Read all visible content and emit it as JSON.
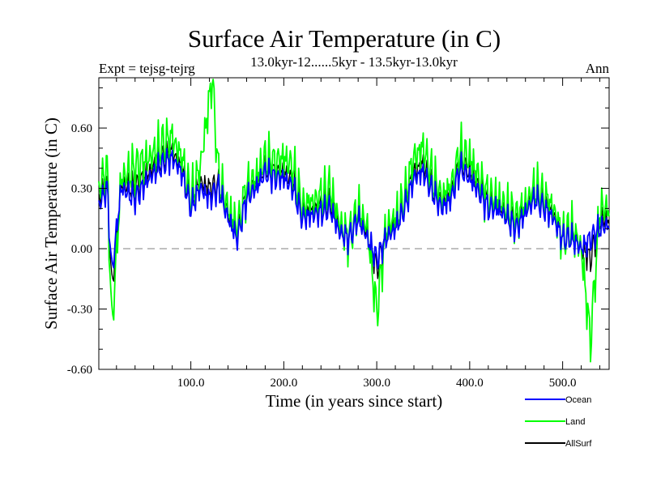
{
  "chart_data": {
    "type": "line",
    "title": "Surface Air Temperature (in C)",
    "subtitle": "13.0kyr-12......5kyr - 13.5kyr-13.0kyr",
    "left_label": "Expt = tejsg-tejrg",
    "right_label": "Ann",
    "xlabel": "Time (in years since start)",
    "ylabel": "Surface Air Temperature (in C)",
    "xlim": [
      1,
      550
    ],
    "ylim": [
      -0.6,
      0.85
    ],
    "x_ticks": [
      100,
      200,
      300,
      400,
      500
    ],
    "x_tick_labels": [
      "100.0",
      "200.0",
      "300.0",
      "400.0",
      "500.0"
    ],
    "y_ticks": [
      -0.6,
      -0.3,
      0.0,
      0.3,
      0.6
    ],
    "y_tick_labels": [
      "-0.60",
      "-0.30",
      "0.00",
      "0.30",
      "0.60"
    ],
    "zero_line": "dashed",
    "legend_position": "bottom-right",
    "series": [
      {
        "name": "Ocean",
        "color": "#0000ff",
        "anchors": [
          [
            1,
            0.22
          ],
          [
            10,
            0.3
          ],
          [
            15,
            -0.12
          ],
          [
            25,
            0.3
          ],
          [
            40,
            0.25
          ],
          [
            55,
            0.35
          ],
          [
            70,
            0.42
          ],
          [
            80,
            0.45
          ],
          [
            90,
            0.38
          ],
          [
            100,
            0.2
          ],
          [
            110,
            0.3
          ],
          [
            120,
            0.25
          ],
          [
            130,
            0.3
          ],
          [
            140,
            0.15
          ],
          [
            150,
            0.05
          ],
          [
            160,
            0.25
          ],
          [
            170,
            0.3
          ],
          [
            180,
            0.38
          ],
          [
            190,
            0.35
          ],
          [
            200,
            0.35
          ],
          [
            210,
            0.3
          ],
          [
            220,
            0.15
          ],
          [
            240,
            0.18
          ],
          [
            250,
            0.2
          ],
          [
            260,
            0.08
          ],
          [
            270,
            0.05
          ],
          [
            280,
            0.15
          ],
          [
            290,
            0.05
          ],
          [
            300,
            -0.05
          ],
          [
            310,
            0.05
          ],
          [
            320,
            0.1
          ],
          [
            330,
            0.2
          ],
          [
            340,
            0.35
          ],
          [
            350,
            0.38
          ],
          [
            360,
            0.28
          ],
          [
            370,
            0.2
          ],
          [
            380,
            0.25
          ],
          [
            390,
            0.4
          ],
          [
            400,
            0.35
          ],
          [
            410,
            0.28
          ],
          [
            420,
            0.2
          ],
          [
            430,
            0.2
          ],
          [
            440,
            0.15
          ],
          [
            450,
            0.1
          ],
          [
            460,
            0.18
          ],
          [
            470,
            0.25
          ],
          [
            480,
            0.2
          ],
          [
            490,
            0.15
          ],
          [
            500,
            0.05
          ],
          [
            510,
            0.05
          ],
          [
            520,
            0.0
          ],
          [
            530,
            0.05
          ],
          [
            540,
            0.1
          ],
          [
            550,
            0.12
          ]
        ]
      },
      {
        "name": "Land",
        "color": "#00ff00",
        "anchors": [
          [
            1,
            0.3
          ],
          [
            10,
            0.4
          ],
          [
            15,
            -0.4
          ],
          [
            25,
            0.35
          ],
          [
            40,
            0.4
          ],
          [
            55,
            0.45
          ],
          [
            70,
            0.52
          ],
          [
            80,
            0.55
          ],
          [
            90,
            0.45
          ],
          [
            100,
            0.25
          ],
          [
            110,
            0.4
          ],
          [
            123,
            0.85
          ],
          [
            130,
            0.35
          ],
          [
            140,
            0.2
          ],
          [
            150,
            0.1
          ],
          [
            160,
            0.3
          ],
          [
            170,
            0.35
          ],
          [
            180,
            0.45
          ],
          [
            190,
            0.42
          ],
          [
            200,
            0.45
          ],
          [
            210,
            0.4
          ],
          [
            220,
            0.2
          ],
          [
            240,
            0.25
          ],
          [
            250,
            0.3
          ],
          [
            260,
            0.12
          ],
          [
            270,
            0.05
          ],
          [
            280,
            0.2
          ],
          [
            290,
            0.1
          ],
          [
            300,
            -0.32
          ],
          [
            310,
            0.1
          ],
          [
            320,
            0.15
          ],
          [
            330,
            0.25
          ],
          [
            340,
            0.45
          ],
          [
            350,
            0.5
          ],
          [
            360,
            0.35
          ],
          [
            370,
            0.25
          ],
          [
            380,
            0.3
          ],
          [
            390,
            0.48
          ],
          [
            400,
            0.45
          ],
          [
            410,
            0.35
          ],
          [
            420,
            0.25
          ],
          [
            430,
            0.25
          ],
          [
            440,
            0.2
          ],
          [
            450,
            0.15
          ],
          [
            460,
            0.22
          ],
          [
            470,
            0.3
          ],
          [
            480,
            0.25
          ],
          [
            490,
            0.2
          ],
          [
            500,
            0.05
          ],
          [
            510,
            0.1
          ],
          [
            520,
            0.0
          ],
          [
            530,
            -0.46
          ],
          [
            540,
            0.2
          ],
          [
            550,
            0.2
          ]
        ]
      },
      {
        "name": "AllSurf",
        "color": "#000000",
        "anchors": [
          [
            1,
            0.25
          ],
          [
            10,
            0.32
          ],
          [
            15,
            -0.2
          ],
          [
            25,
            0.32
          ],
          [
            40,
            0.3
          ],
          [
            55,
            0.38
          ],
          [
            70,
            0.45
          ],
          [
            80,
            0.48
          ],
          [
            90,
            0.4
          ],
          [
            100,
            0.22
          ],
          [
            110,
            0.33
          ],
          [
            120,
            0.3
          ],
          [
            130,
            0.32
          ],
          [
            140,
            0.17
          ],
          [
            150,
            0.07
          ],
          [
            160,
            0.27
          ],
          [
            170,
            0.32
          ],
          [
            180,
            0.41
          ],
          [
            190,
            0.37
          ],
          [
            200,
            0.38
          ],
          [
            210,
            0.33
          ],
          [
            220,
            0.17
          ],
          [
            240,
            0.2
          ],
          [
            250,
            0.23
          ],
          [
            260,
            0.09
          ],
          [
            270,
            0.05
          ],
          [
            280,
            0.17
          ],
          [
            290,
            0.07
          ],
          [
            300,
            -0.1
          ],
          [
            310,
            0.07
          ],
          [
            320,
            0.12
          ],
          [
            330,
            0.22
          ],
          [
            340,
            0.38
          ],
          [
            350,
            0.42
          ],
          [
            360,
            0.3
          ],
          [
            370,
            0.22
          ],
          [
            380,
            0.27
          ],
          [
            390,
            0.43
          ],
          [
            400,
            0.38
          ],
          [
            410,
            0.3
          ],
          [
            420,
            0.22
          ],
          [
            430,
            0.22
          ],
          [
            440,
            0.17
          ],
          [
            450,
            0.12
          ],
          [
            460,
            0.2
          ],
          [
            470,
            0.27
          ],
          [
            480,
            0.22
          ],
          [
            490,
            0.17
          ],
          [
            500,
            0.05
          ],
          [
            510,
            0.07
          ],
          [
            520,
            0.0
          ],
          [
            530,
            -0.05
          ],
          [
            540,
            0.14
          ],
          [
            550,
            0.15
          ]
        ]
      }
    ],
    "colors": {
      "axis": "#000000",
      "zero_line": "#808080"
    }
  }
}
